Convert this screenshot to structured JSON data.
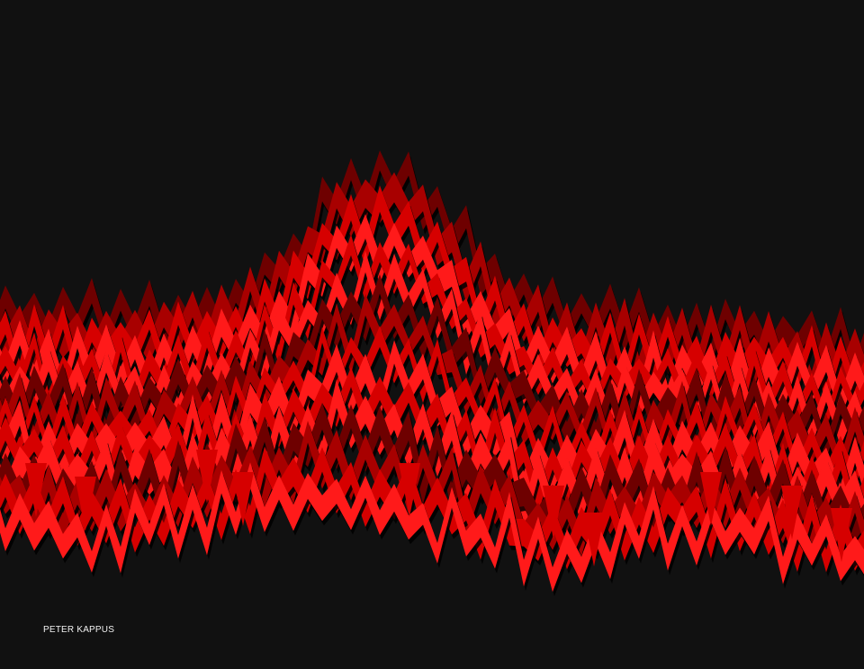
{
  "artwork": {
    "artist_credit": "PETER KAPPUS",
    "colors": {
      "background": "#111111",
      "shadow": "#000000",
      "deep_red": "#6e0000",
      "dark_red": "#a80000",
      "mid_red": "#d60000",
      "bright_red": "#ff1a1a",
      "credit_text": "#f2f2f2"
    }
  }
}
